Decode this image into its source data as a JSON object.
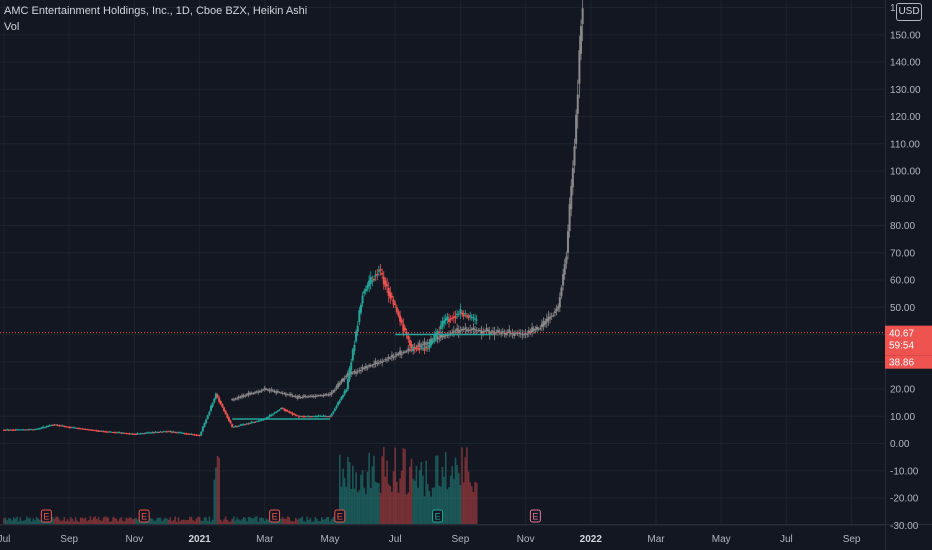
{
  "header": {
    "title": "AMC Entertainment Holdings, Inc., 1D, Cboe BZX, Heikin Ashi",
    "volume_label": "Vol",
    "currency": "USD"
  },
  "price_labels": {
    "current": "40.67",
    "countdown": "59:54",
    "other": "38.86",
    "current_value": 40.67
  },
  "colors": {
    "up": "#26a69a",
    "down": "#ef5350",
    "projection": "#8a8a8a",
    "background": "#131722",
    "grid": "#1e222d",
    "price_line": "#ef5350",
    "support_line": "#26a69a"
  },
  "chart_data": {
    "type": "candlestick",
    "style": "Heikin Ashi",
    "y_range": [
      -30,
      165
    ],
    "y_ticks": [
      "160.00",
      "150.00",
      "140.00",
      "130.00",
      "120.00",
      "110.00",
      "100.00",
      "90.00",
      "80.00",
      "70.00",
      "60.00",
      "50.00",
      "40.00",
      "30.00",
      "20.00",
      "10.00",
      "0.00",
      "-10.00",
      "-20.00",
      "-30.00"
    ],
    "x_ticks": [
      "Jul",
      "Sep",
      "Nov",
      "2021",
      "Mar",
      "May",
      "Jul",
      "Sep",
      "Nov",
      "2022",
      "Mar",
      "May",
      "Jul",
      "Sep"
    ],
    "x_ticks_bold": [
      "2021",
      "2022"
    ],
    "earnings_markers": [
      {
        "label": "E",
        "month": "Aug 2020",
        "color": "#ef5350"
      },
      {
        "label": "E",
        "month": "Nov 2020",
        "color": "#ef5350"
      },
      {
        "label": "E",
        "month": "Mar 2021",
        "color": "#ef5350"
      },
      {
        "label": "E",
        "month": "May 2021",
        "color": "#ef5350"
      },
      {
        "label": "E",
        "month": "Aug 2021",
        "color": "#26a69a"
      },
      {
        "label": "E",
        "month": "Nov 2021",
        "color": "#e07aa0"
      }
    ],
    "grid": true,
    "series": [
      {
        "kind": "actual",
        "keypoints": [
          [
            "Jul 2020",
            5
          ],
          [
            "Aug 2020",
            5.2
          ],
          [
            "Aug 2020",
            7
          ],
          [
            "Sep 2020",
            6
          ],
          [
            "Oct 2020",
            4.5
          ],
          [
            "Nov 2020",
            3.5
          ],
          [
            "Dec 2020",
            4.5
          ],
          [
            "Jan 2021",
            3
          ],
          [
            "Jan 2021",
            18
          ],
          [
            "Feb 2021",
            6
          ],
          [
            "Mar 2021",
            9
          ],
          [
            "Mar 2021",
            13
          ],
          [
            "Apr 2021",
            10
          ],
          [
            "May 2021",
            10
          ],
          [
            "May 2021",
            20
          ],
          [
            "Jun 2021",
            55
          ],
          [
            "Jun 2021",
            64
          ],
          [
            "Jul 2021",
            50
          ],
          [
            "Jul 2021",
            35
          ],
          [
            "Aug 2021",
            35
          ],
          [
            "Aug 2021",
            45
          ],
          [
            "Sep 2021",
            48
          ],
          [
            "Sep 2021",
            45
          ]
        ]
      },
      {
        "kind": "projection",
        "keypoints": [
          [
            "Feb 2021",
            16
          ],
          [
            "Mar 2021",
            20
          ],
          [
            "Apr 2021",
            17
          ],
          [
            "May 2021",
            18
          ],
          [
            "May 2021",
            25
          ],
          [
            "Sep 2021",
            42
          ],
          [
            "Oct 2021",
            41
          ],
          [
            "Nov 2021",
            40
          ],
          [
            "Nov 2021",
            43
          ],
          [
            "Dec 2021",
            50
          ],
          [
            "Dec 2021",
            70
          ],
          [
            "Dec 2021",
            110
          ],
          [
            "Dec 2021",
            165
          ]
        ]
      }
    ],
    "support_lines": [
      {
        "from": "Feb 2021",
        "to": "May 2021",
        "value": 9
      },
      {
        "from": "Jul 2021",
        "to": "Oct 2021",
        "value": 40
      }
    ]
  }
}
